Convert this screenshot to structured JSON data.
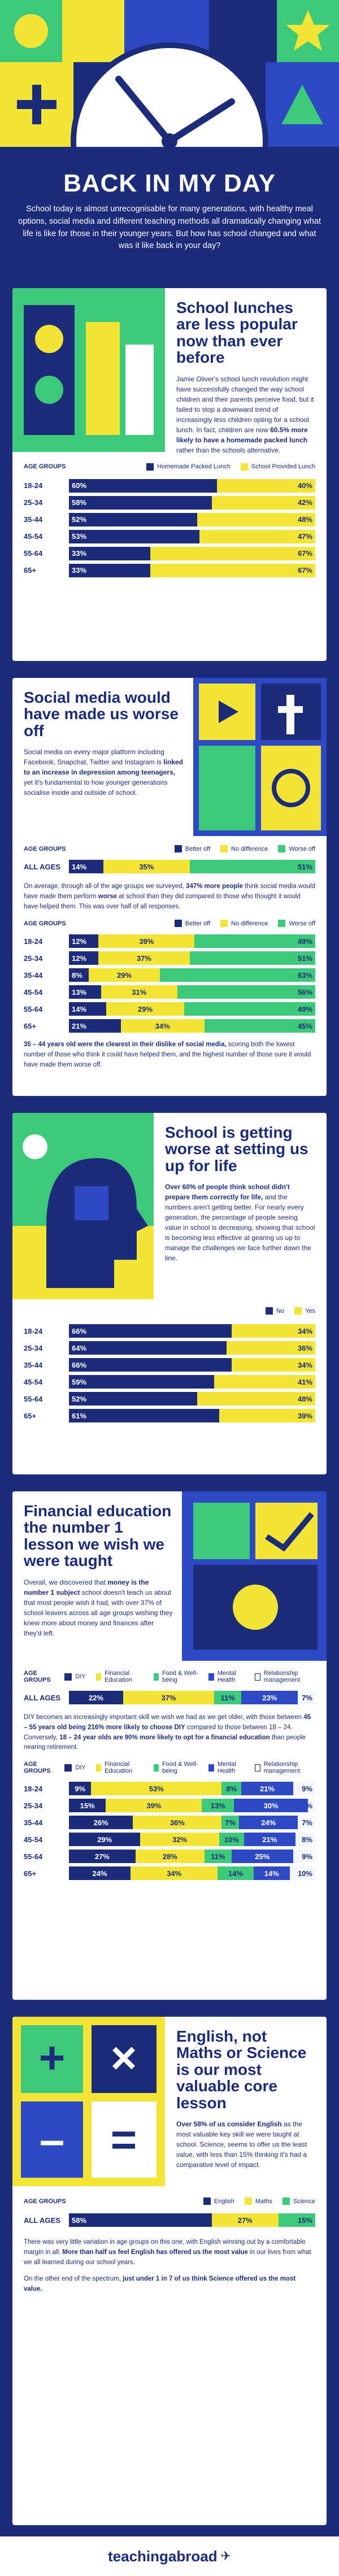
{
  "header": {
    "title": "BACK IN MY DAY",
    "intro": "School today is almost unrecognisable for many generations, with healthy meal options, social media and different teaching methods all dramatically changing what life is like for those in their younger years. But how has school changed and what was it like back in your day?"
  },
  "colors": {
    "navy": "#1c2c7a",
    "yellow": "#f2e535",
    "green": "#3ec97a",
    "white": "#ffffff"
  },
  "lunch": {
    "title": "School lunches are less popular now than ever before",
    "text_a": "Jamie Oliver's school lunch revolution might have successfully changed the way school children and their parents perceive food, but it failed to stop a downward trend of increasingly less children opting for a school lunch. In fact, children are now ",
    "text_b": "60.5% more likely to have a homemade packed lunch",
    "text_c": " rather than the schools alternative.",
    "legend": {
      "age": "AGE GROUPS",
      "a": "Homemade Packed Lunch",
      "b": "School Provided Lunch"
    },
    "rows": [
      {
        "label": "18-24",
        "a": 60,
        "b": 40,
        "a_t": "60%",
        "b_t": "40%"
      },
      {
        "label": "25-34",
        "a": 58,
        "a_t": "58%",
        "b": 42,
        "b_t": "42%"
      },
      {
        "label": "35-44",
        "a": 52,
        "a_t": "52%",
        "b": 48,
        "b_t": "48%"
      },
      {
        "label": "45-54",
        "a": 53,
        "a_t": "53%",
        "b": 47,
        "b_t": "47%"
      },
      {
        "label": "55-64",
        "a": 33,
        "a_t": "33%",
        "b": 67,
        "b_t": "67%"
      },
      {
        "label": "65+",
        "a": 33,
        "a_t": "33%",
        "b": 67,
        "b_t": "67%"
      }
    ]
  },
  "social": {
    "title": "Social media would have made us worse off",
    "text_a": "Social media on every major platform including Facebook, Snapchat, Twitter and Instagram is ",
    "text_b": "linked to an increase in depression among teenagers,",
    "text_c": " yet it's fundamental to how younger generations socialise inside and outside of school.",
    "legend": {
      "age": "AGE GROUPS",
      "a": "Better off",
      "b": "No difference",
      "c": "Worse off"
    },
    "all": {
      "label": "ALL AGES",
      "a": 14,
      "a_t": "14%",
      "b": 35,
      "b_t": "35%",
      "c": 51,
      "c_t": "51%"
    },
    "mid_a": "On average, through all of the age groups we surveyed, ",
    "mid_b": "347% more people",
    "mid_c": " think social media would have made them perform ",
    "mid_d": "worse",
    "mid_e": " at school than they did compared to those who thought it would have helped them. This was over half of all responses.",
    "rows": [
      {
        "label": "18-24",
        "a": 12,
        "a_t": "12%",
        "b": 39,
        "b_t": "39%",
        "c": 49,
        "c_t": "49%"
      },
      {
        "label": "25-34",
        "a": 12,
        "a_t": "12%",
        "b": 37,
        "b_t": "37%",
        "c": 51,
        "c_t": "51%"
      },
      {
        "label": "35-44",
        "a": 8,
        "a_t": "8%",
        "b": 29,
        "b_t": "29%",
        "c": 63,
        "c_t": "63%"
      },
      {
        "label": "45-54",
        "a": 13,
        "a_t": "13%",
        "b": 31,
        "b_t": "31%",
        "c": 56,
        "c_t": "56%"
      },
      {
        "label": "55-64",
        "a": 14,
        "a_t": "14%",
        "b": 29,
        "b_t": "29%",
        "c": 49,
        "c_t": "49%"
      },
      {
        "label": "65+",
        "a": 21,
        "a_t": "21%",
        "b": 34,
        "b_t": "34%",
        "c": 45,
        "c_t": "45%"
      }
    ],
    "foot_a": "35 – 44 years old were the clearest in their dislike of social media,",
    "foot_b": " scoring both the lowest number of those who think it could have helped them, and the highest number of those sure it would have made them worse off."
  },
  "worse": {
    "title": "School is getting worse at setting us up for life",
    "text_a": "Over 60% of people think school didn't prepare them correctly for life,",
    "text_b": " and the numbers aren't getting better. For nearly every generation, the percentage of people seeing value in school is decreasing, showing that school is becoming less effective at gearing us up to manage the challenges we face further down the line.",
    "legend": {
      "age": "",
      "a": "No",
      "b": "Yes"
    },
    "rows": [
      {
        "label": "18-24",
        "a": 66,
        "a_t": "66%",
        "b": 34,
        "b_t": "34%"
      },
      {
        "label": "25-34",
        "a": 64,
        "a_t": "64%",
        "b": 36,
        "b_t": "36%"
      },
      {
        "label": "35-44",
        "a": 66,
        "a_t": "66%",
        "b": 34,
        "b_t": "34%"
      },
      {
        "label": "45-54",
        "a": 59,
        "a_t": "59%",
        "b": 41,
        "b_t": "41%"
      },
      {
        "label": "55-64",
        "a": 52,
        "a_t": "52%",
        "b": 48,
        "b_t": "48%"
      },
      {
        "label": "65+",
        "a": 61,
        "a_t": "61%",
        "b": 39,
        "b_t": "39%"
      }
    ]
  },
  "finance": {
    "title": "Financial education the number 1 lesson we wish we were taught",
    "text_a": "Overall, we discovered that ",
    "text_b": "money is the number 1 subject",
    "text_c": " school doesn't teach us about that most people wish it had, with over 37% of school leavers across all age groups wishing they knew more about money and finances after they'd left.",
    "legend": {
      "age": "AGE GROUPS",
      "a": "DIY",
      "b": "Financial Education",
      "c": "Food & Well-being",
      "d": "Mental Health",
      "e": "Relationship management"
    },
    "all": {
      "label": "ALL AGES",
      "v": [
        22,
        37,
        11,
        23,
        7
      ],
      "t": [
        "22%",
        "37%",
        "11%",
        "23%",
        "7%"
      ]
    },
    "mid_a": "DIY becomes an increasingly important skill we wish we had as we get older, with those between ",
    "mid_b": "45 – 55 years old being 216% more likely to choose DIY",
    "mid_c": " compared to those between 18 – 24. Conversely, ",
    "mid_d": "18 – 24 year olds are 90% more likely to opt for a financial education",
    "mid_e": " than people nearing retirement.",
    "rows": [
      {
        "label": "18-24",
        "v": [
          9,
          53,
          8,
          21,
          9
        ],
        "t": [
          "9%",
          "53%",
          "8%",
          "21%",
          "9%"
        ]
      },
      {
        "label": "25-34",
        "v": [
          15,
          39,
          13,
          30,
          3
        ],
        "t": [
          "15%",
          "39%",
          "13%",
          "30%",
          "3%"
        ]
      },
      {
        "label": "35-44",
        "v": [
          26,
          36,
          7,
          24,
          7
        ],
        "t": [
          "26%",
          "36%",
          "7%",
          "24%",
          "7%"
        ]
      },
      {
        "label": "45-54",
        "v": [
          29,
          32,
          10,
          21,
          8
        ],
        "t": [
          "29%",
          "32%",
          "10%",
          "21%",
          "8%"
        ]
      },
      {
        "label": "55-64",
        "v": [
          27,
          28,
          11,
          25,
          9
        ],
        "t": [
          "27%",
          "28%",
          "11%",
          "25%",
          "9%"
        ]
      },
      {
        "label": "65+",
        "v": [
          24,
          34,
          14,
          14,
          10
        ],
        "t": [
          "24%",
          "34%",
          "14%",
          "14%",
          "10%"
        ]
      }
    ]
  },
  "english": {
    "title": "English, not Maths or Science is our most valuable core lesson",
    "text_a": "Over 58% of us consider English",
    "text_b": " as the most valuable key skill we were taught at school. Science, seems to offer us the least value, with less than 15% thinking it's had a comparative level of impact.",
    "legend": {
      "age": "AGE GROUPS",
      "a": "English",
      "b": "Maths",
      "c": "Science"
    },
    "all": {
      "label": "ALL AGES",
      "a": 58,
      "a_t": "58%",
      "b": 27,
      "b_t": "27%",
      "c": 15,
      "c_t": "15%"
    },
    "foot1_a": "There was very little variation in age groups on this one, with English winning out by a comfortable margin in all. ",
    "foot1_b": "More than half us feel English has offered us the most value",
    "foot1_c": " in our lives from what we all learned during our school years.",
    "foot2_a": "On the other end of the spectrum, ",
    "foot2_b": "just under 1 in 7 of us think Science offered us the most value."
  },
  "footer": {
    "brand": "teachingabroad",
    "icon": "plane-icon"
  }
}
